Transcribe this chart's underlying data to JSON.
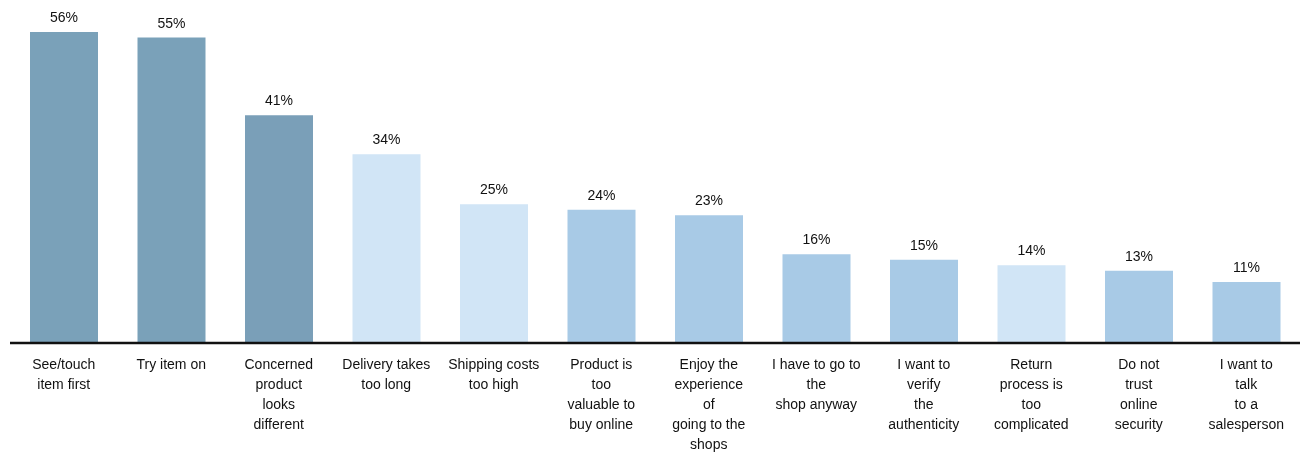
{
  "chart_data": {
    "type": "bar",
    "categories": [
      "See/touch\nitem first",
      "Try item on",
      "Concerned\nproduct\nlooks\ndifferent",
      "Delivery takes\ntoo long",
      "Shipping costs\ntoo high",
      "Product is\ntoo\nvaluable to\nbuy online",
      "Enjoy the\nexperience\nof\ngoing to the\nshops",
      "I have to go to\nthe\nshop anyway",
      "I want to\nverify\nthe\nauthenticity",
      "Return\nprocess is\ntoo\ncomplicated",
      "Do not\ntrust\nonline\nsecurity",
      "I want to\ntalk\nto a\nsalesperson"
    ],
    "values": [
      56,
      55,
      41,
      34,
      25,
      24,
      23,
      16,
      15,
      14,
      13,
      11
    ],
    "colors": [
      "#7aa1b9",
      "#7aa1b9",
      "#7a9fb8",
      "#d1e5f6",
      "#d1e5f6",
      "#a8cae6",
      "#a8cae6",
      "#a8cae6",
      "#a8cae6",
      "#d1e5f6",
      "#a8cae6",
      "#a8cae6"
    ],
    "value_labels": [
      "56%",
      "55%",
      "41%",
      "34%",
      "25%",
      "24%",
      "23%",
      "16%",
      "15%",
      "14%",
      "13%",
      "11%"
    ],
    "tick_labels": "x"
  }
}
